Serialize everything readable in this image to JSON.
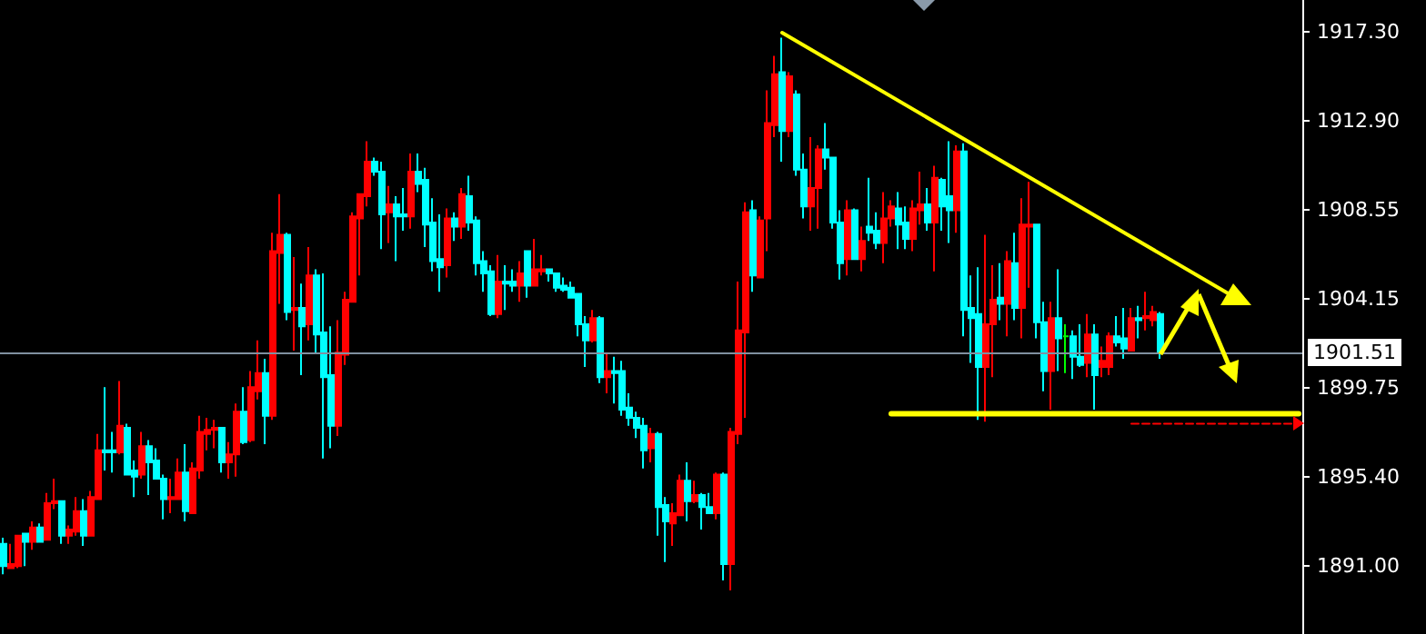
{
  "chart_data": {
    "type": "candlestick",
    "tick_labels": "y",
    "grid": false,
    "categories": [
      null,
      null,
      null,
      null,
      null,
      null,
      null,
      null,
      null,
      null,
      null,
      null,
      null,
      null,
      null,
      null,
      null,
      null,
      null,
      null,
      null,
      null,
      null,
      null,
      null,
      null,
      null,
      null,
      null,
      null,
      null,
      null,
      null,
      null,
      null,
      null,
      null,
      null,
      null,
      null,
      null,
      null,
      null,
      null,
      null,
      null,
      null,
      null,
      null,
      null,
      null,
      null,
      null,
      null,
      null,
      null,
      null,
      null,
      null,
      null,
      null,
      null,
      null,
      null,
      null,
      null,
      null,
      null,
      null,
      null,
      null,
      null,
      null,
      null,
      null,
      null,
      null,
      null,
      null,
      null,
      null,
      null,
      null,
      null,
      null,
      null,
      null,
      null,
      null,
      null,
      null,
      null,
      null,
      null,
      null,
      null,
      null,
      null,
      null,
      null,
      null,
      null,
      null,
      null,
      null,
      null,
      null,
      null,
      null,
      null,
      null,
      null,
      null,
      null,
      null,
      null,
      null,
      null,
      null,
      null,
      null,
      null,
      null,
      null,
      null,
      null,
      null,
      null,
      null,
      null,
      null,
      null,
      null,
      null,
      null,
      null,
      null,
      null,
      null,
      null,
      null,
      null,
      null,
      null,
      null,
      null,
      null,
      null,
      null,
      null,
      null,
      null,
      null,
      null,
      null,
      null,
      null,
      null,
      null,
      null,
      null,
      null,
      null,
      null,
      null,
      null,
      null,
      null,
      null,
      null,
      null,
      null,
      null,
      null,
      null,
      null,
      null,
      null,
      null
    ],
    "ohlc": [
      [
        1892.1,
        1892.4,
        1890.6,
        1891.0
      ],
      [
        1890.9,
        1892.1,
        1890.9,
        1891.1
      ],
      [
        1891.0,
        1892.5,
        1890.9,
        1892.5
      ],
      [
        1892.6,
        1892.6,
        1891.0,
        1892.2
      ],
      [
        1892.2,
        1893.2,
        1891.8,
        1892.9
      ],
      [
        1892.9,
        1893.1,
        1892.2,
        1892.2
      ],
      [
        1892.3,
        1894.6,
        1892.3,
        1894.1
      ],
      [
        1894.1,
        1895.3,
        1893.8,
        1894.2
      ],
      [
        1894.2,
        1894.2,
        1892.1,
        1892.5
      ],
      [
        1892.5,
        1893.0,
        1892.1,
        1892.8
      ],
      [
        1892.7,
        1894.4,
        1892.5,
        1893.7
      ],
      [
        1893.7,
        1894.3,
        1892.0,
        1892.5
      ],
      [
        1892.5,
        1894.7,
        1892.5,
        1894.4
      ],
      [
        1894.3,
        1897.5,
        1894.3,
        1896.7
      ],
      [
        1896.7,
        1899.8,
        1895.7,
        1896.6
      ],
      [
        1896.7,
        1897.6,
        1895.6,
        1896.6
      ],
      [
        1896.6,
        1900.1,
        1896.5,
        1897.9
      ],
      [
        1897.8,
        1898.0,
        1895.5,
        1895.5
      ],
      [
        1895.7,
        1896.2,
        1894.4,
        1895.4
      ],
      [
        1895.5,
        1897.6,
        1895.3,
        1896.9
      ],
      [
        1896.9,
        1897.2,
        1894.5,
        1896.1
      ],
      [
        1896.2,
        1896.8,
        1895.3,
        1895.3
      ],
      [
        1895.3,
        1895.5,
        1893.3,
        1894.3
      ],
      [
        1894.3,
        1895.3,
        1893.6,
        1894.4
      ],
      [
        1894.3,
        1896.3,
        1894.3,
        1895.6
      ],
      [
        1895.6,
        1897.0,
        1893.2,
        1893.7
      ],
      [
        1893.6,
        1896.1,
        1893.6,
        1895.8
      ],
      [
        1895.7,
        1898.4,
        1895.3,
        1897.6
      ],
      [
        1897.5,
        1898.3,
        1896.7,
        1897.7
      ],
      [
        1897.7,
        1898.2,
        1896.8,
        1897.8
      ],
      [
        1897.8,
        1897.8,
        1895.6,
        1896.1
      ],
      [
        1896.1,
        1897.1,
        1895.3,
        1896.5
      ],
      [
        1896.5,
        1899.0,
        1895.4,
        1898.6
      ],
      [
        1898.6,
        1899.8,
        1897.0,
        1897.1
      ],
      [
        1897.2,
        1900.6,
        1897.1,
        1899.8
      ],
      [
        1899.6,
        1902.1,
        1899.2,
        1900.5
      ],
      [
        1900.5,
        1901.2,
        1897.0,
        1898.4
      ],
      [
        1898.4,
        1907.4,
        1898.2,
        1906.5
      ],
      [
        1906.4,
        1909.3,
        1903.9,
        1907.3
      ],
      [
        1907.3,
        1907.4,
        1903.1,
        1903.5
      ],
      [
        1903.6,
        1906.2,
        1901.6,
        1903.7
      ],
      [
        1903.7,
        1904.9,
        1900.4,
        1902.8
      ],
      [
        1902.9,
        1906.7,
        1902.1,
        1905.3
      ],
      [
        1905.3,
        1905.6,
        1901.5,
        1902.4
      ],
      [
        1902.5,
        1905.4,
        1896.3,
        1900.3
      ],
      [
        1900.4,
        1902.8,
        1896.8,
        1897.9
      ],
      [
        1897.9,
        1903.1,
        1897.4,
        1901.5
      ],
      [
        1901.4,
        1904.5,
        1900.9,
        1904.1
      ],
      [
        1904.0,
        1908.4,
        1904.0,
        1908.2
      ],
      [
        1908.1,
        1909.3,
        1905.3,
        1909.3
      ],
      [
        1909.2,
        1911.9,
        1908.7,
        1910.9
      ],
      [
        1910.9,
        1911.1,
        1910.2,
        1910.4
      ],
      [
        1910.4,
        1910.9,
        1906.6,
        1908.3
      ],
      [
        1908.4,
        1909.7,
        1906.9,
        1908.8
      ],
      [
        1908.8,
        1909.2,
        1906.0,
        1908.2
      ],
      [
        1908.3,
        1909.6,
        1907.5,
        1908.2
      ],
      [
        1908.2,
        1911.3,
        1907.6,
        1910.4
      ],
      [
        1910.4,
        1911.3,
        1909.4,
        1909.8
      ],
      [
        1910.0,
        1910.6,
        1906.7,
        1907.8
      ],
      [
        1907.9,
        1909.1,
        1905.5,
        1906.0
      ],
      [
        1906.1,
        1908.3,
        1904.5,
        1905.7
      ],
      [
        1905.8,
        1908.6,
        1905.2,
        1908.1
      ],
      [
        1908.1,
        1908.4,
        1907.0,
        1907.7
      ],
      [
        1907.7,
        1909.6,
        1907.1,
        1909.3
      ],
      [
        1909.2,
        1910.2,
        1907.5,
        1907.9
      ],
      [
        1908.0,
        1908.2,
        1905.3,
        1905.9
      ],
      [
        1906.0,
        1906.5,
        1904.5,
        1905.4
      ],
      [
        1905.5,
        1905.8,
        1903.3,
        1903.4
      ],
      [
        1903.4,
        1906.3,
        1903.2,
        1905.0
      ],
      [
        1905.0,
        1905.8,
        1903.6,
        1904.9
      ],
      [
        1905.0,
        1905.6,
        1904.5,
        1904.8
      ],
      [
        1904.8,
        1906.0,
        1904.0,
        1905.4
      ],
      [
        1906.5,
        1906.5,
        1904.2,
        1904.8
      ],
      [
        1904.8,
        1907.1,
        1904.8,
        1905.6
      ],
      [
        1905.5,
        1906.3,
        1905.3,
        1905.6
      ],
      [
        1905.6,
        1905.6,
        1905.0,
        1905.4
      ],
      [
        1905.4,
        1905.4,
        1904.5,
        1904.7
      ],
      [
        1904.8,
        1905.2,
        1904.5,
        1904.6
      ],
      [
        1904.7,
        1905.0,
        1904.2,
        1904.2
      ],
      [
        1904.4,
        1904.4,
        1902.3,
        1902.9
      ],
      [
        1902.9,
        1903.3,
        1900.8,
        1902.1
      ],
      [
        1902.1,
        1903.6,
        1902.0,
        1903.2
      ],
      [
        1903.2,
        1903.3,
        1900.0,
        1900.3
      ],
      [
        1900.3,
        1901.5,
        1899.5,
        1900.6
      ],
      [
        1900.6,
        1901.3,
        1899.0,
        1900.5
      ],
      [
        1900.6,
        1901.1,
        1898.4,
        1898.7
      ],
      [
        1898.8,
        1899.5,
        1897.9,
        1898.3
      ],
      [
        1898.3,
        1898.6,
        1897.3,
        1897.8
      ],
      [
        1897.9,
        1898.3,
        1895.8,
        1896.7
      ],
      [
        1896.8,
        1897.8,
        1896.1,
        1897.5
      ],
      [
        1897.5,
        1897.6,
        1892.5,
        1893.9
      ],
      [
        1894.0,
        1894.4,
        1891.2,
        1893.2
      ],
      [
        1893.1,
        1894.1,
        1892.0,
        1893.6
      ],
      [
        1893.5,
        1895.5,
        1893.5,
        1895.2
      ],
      [
        1895.2,
        1896.1,
        1893.2,
        1894.2
      ],
      [
        1894.2,
        1895.2,
        1894.1,
        1894.5
      ],
      [
        1894.5,
        1894.6,
        1892.8,
        1893.9
      ],
      [
        1893.9,
        1894.6,
        1893.6,
        1893.6
      ],
      [
        1893.6,
        1895.6,
        1893.3,
        1895.5
      ],
      [
        1895.5,
        1895.6,
        1890.3,
        1891.1
      ],
      [
        1891.1,
        1897.8,
        1889.8,
        1897.6
      ],
      [
        1897.5,
        1905.0,
        1897.0,
        1902.6
      ],
      [
        1902.5,
        1908.9,
        1898.3,
        1908.4
      ],
      [
        1908.5,
        1909.0,
        1904.5,
        1905.3
      ],
      [
        1905.2,
        1908.2,
        1905.2,
        1908.0
      ],
      [
        1908.1,
        1914.4,
        1906.5,
        1912.8
      ],
      [
        1912.7,
        1916.1,
        1912.1,
        1915.2
      ],
      [
        1915.3,
        1917.0,
        1910.9,
        1912.4
      ],
      [
        1912.4,
        1915.3,
        1912.1,
        1915.1
      ],
      [
        1914.2,
        1914.4,
        1910.2,
        1910.5
      ],
      [
        1910.5,
        1911.3,
        1908.1,
        1908.7
      ],
      [
        1908.7,
        1912.1,
        1907.5,
        1909.6
      ],
      [
        1909.6,
        1911.7,
        1907.6,
        1911.5
      ],
      [
        1911.5,
        1912.8,
        1910.5,
        1911.1
      ],
      [
        1911.1,
        1911.1,
        1907.6,
        1907.9
      ],
      [
        1907.9,
        1908.5,
        1905.1,
        1905.9
      ],
      [
        1906.1,
        1909.0,
        1905.3,
        1908.5
      ],
      [
        1908.5,
        1908.6,
        1906.1,
        1906.1
      ],
      [
        1906.1,
        1907.7,
        1905.5,
        1907.0
      ],
      [
        1907.7,
        1910.1,
        1907.0,
        1907.4
      ],
      [
        1907.5,
        1908.4,
        1906.6,
        1906.9
      ],
      [
        1906.9,
        1909.4,
        1905.9,
        1908.1
      ],
      [
        1908.1,
        1909.0,
        1907.7,
        1908.7
      ],
      [
        1908.6,
        1909.4,
        1906.6,
        1907.8
      ],
      [
        1907.9,
        1908.7,
        1906.6,
        1907.1
      ],
      [
        1907.1,
        1909.0,
        1906.5,
        1908.6
      ],
      [
        1908.5,
        1910.4,
        1907.8,
        1908.8
      ],
      [
        1908.8,
        1909.6,
        1907.5,
        1907.9
      ],
      [
        1907.9,
        1910.7,
        1905.5,
        1910.1
      ],
      [
        1910.0,
        1910.1,
        1907.5,
        1908.7
      ],
      [
        1909.2,
        1911.9,
        1906.9,
        1908.5
      ],
      [
        1908.5,
        1911.7,
        1907.4,
        1911.4
      ],
      [
        1911.4,
        1911.8,
        1902.3,
        1903.6
      ],
      [
        1903.7,
        1905.3,
        1901.0,
        1903.2
      ],
      [
        1903.4,
        1905.7,
        1898.2,
        1900.8
      ],
      [
        1900.8,
        1907.3,
        1898.1,
        1902.9
      ],
      [
        1902.9,
        1905.8,
        1900.3,
        1904.1
      ],
      [
        1904.2,
        1905.9,
        1903.1,
        1903.9
      ],
      [
        1903.9,
        1906.5,
        1902.3,
        1906.0
      ],
      [
        1905.9,
        1907.4,
        1903.1,
        1903.7
      ],
      [
        1903.7,
        1909.1,
        1902.2,
        1907.8
      ],
      [
        1907.7,
        1909.9,
        1904.7,
        1907.8
      ],
      [
        1907.8,
        1907.8,
        1902.2,
        1903.0
      ],
      [
        1903.0,
        1904.0,
        1899.6,
        1900.6
      ],
      [
        1900.6,
        1904.0,
        1898.7,
        1903.2
      ],
      [
        1903.2,
        1905.6,
        1900.6,
        1902.2
      ],
      [
        1902.3,
        1902.9,
        1900.5,
        1902.3
      ],
      [
        1902.3,
        1902.6,
        1900.2,
        1901.3
      ],
      [
        1901.3,
        1902.9,
        1900.8,
        1900.9
      ],
      [
        1901.0,
        1903.4,
        1900.3,
        1902.4
      ],
      [
        1902.4,
        1902.9,
        1898.7,
        1900.4
      ],
      [
        1900.8,
        1901.8,
        1900.3,
        1901.1
      ],
      [
        1900.8,
        1902.5,
        1900.4,
        1902.3
      ],
      [
        1902.3,
        1903.3,
        1901.8,
        1902.0
      ],
      [
        1902.2,
        1903.7,
        1901.2,
        1901.7
      ],
      [
        1901.6,
        1903.7,
        1901.6,
        1903.2
      ],
      [
        1903.2,
        1903.8,
        1902.2,
        1903.1
      ],
      [
        1903.2,
        1904.5,
        1902.6,
        1903.3
      ],
      [
        1903.1,
        1903.8,
        1902.8,
        1903.5
      ],
      [
        1903.4,
        1903.5,
        1901.2,
        1901.5
      ],
      null,
      null,
      null,
      null,
      null,
      null,
      null,
      null,
      null,
      null,
      null,
      null,
      null,
      null,
      null,
      null,
      null,
      null,
      null
    ],
    "colors": [
      "#00ffff",
      "#ff0000",
      "#ff0000",
      "#00ffff",
      "#ff0000",
      "#00ffff",
      "#ff0000",
      "#ff0000",
      "#00ffff",
      "#ff0000",
      "#ff0000",
      "#00ffff",
      "#ff0000",
      "#ff0000",
      "#00ffff",
      "#00ffff",
      "#ff0000",
      "#00ffff",
      "#00ffff",
      "#ff0000",
      "#00ffff",
      "#00ffff",
      "#00ffff",
      "#ff0000",
      "#ff0000",
      "#00ffff",
      "#ff0000",
      "#ff0000",
      "#ff0000",
      "#ff0000",
      "#00ffff",
      "#ff0000",
      "#ff0000",
      "#00ffff",
      "#ff0000",
      "#ff0000",
      "#00ffff",
      "#ff0000",
      "#ff0000",
      "#00ffff",
      "#ff0000",
      "#00ffff",
      "#ff0000",
      "#00ffff",
      "#00ffff",
      "#00ffff",
      "#ff0000",
      "#ff0000",
      "#ff0000",
      "#ff0000",
      "#ff0000",
      "#00ffff",
      "#00ffff",
      "#ff0000",
      "#00ffff",
      "#00ffff",
      "#ff0000",
      "#00ffff",
      "#00ffff",
      "#00ffff",
      "#00ffff",
      "#ff0000",
      "#00ffff",
      "#ff0000",
      "#00ffff",
      "#00ffff",
      "#00ffff",
      "#00ffff",
      "#ff0000",
      "#00ffff",
      "#00ffff",
      "#ff0000",
      "#00ffff",
      "#ff0000",
      "#ff0000",
      "#00ffff",
      "#00ffff",
      "#00ffff",
      "#00ffff",
      "#00ffff",
      "#00ffff",
      "#ff0000",
      "#00ffff",
      "#ff0000",
      "#00ffff",
      "#00ffff",
      "#00ffff",
      "#00ffff",
      "#00ffff",
      "#ff0000",
      "#00ffff",
      "#00ffff",
      "#ff0000",
      "#ff0000",
      "#00ffff",
      "#ff0000",
      "#00ffff",
      "#00ffff",
      "#ff0000",
      "#00ffff",
      "#ff0000",
      "#ff0000",
      "#ff0000",
      "#00ffff",
      "#ff0000",
      "#ff0000",
      "#ff0000",
      "#00ffff",
      "#ff0000",
      "#00ffff",
      "#00ffff",
      "#ff0000",
      "#ff0000",
      "#00ffff",
      "#00ffff",
      "#00ffff",
      "#ff0000",
      "#00ffff",
      "#ff0000",
      "#00ffff",
      "#00ffff",
      "#ff0000",
      "#ff0000",
      "#00ffff",
      "#00ffff",
      "#ff0000",
      "#ff0000",
      "#00ffff",
      "#ff0000",
      "#00ffff",
      "#00ffff",
      "#ff0000",
      "#00ffff",
      "#00ffff",
      "#00ffff",
      "#ff0000",
      "#ff0000",
      "#00ffff",
      "#ff0000",
      "#00ffff",
      "#ff0000",
      "#ff0000",
      "#00ffff",
      "#00ffff",
      "#ff0000",
      "#00ffff",
      "#00ff00",
      "#00ffff",
      "#00ffff",
      "#ff0000",
      "#00ffff",
      "#ff0000",
      "#ff0000",
      "#00ffff",
      "#00ffff",
      "#ff0000",
      "#00ffff",
      "#ff0000",
      "#ff0000",
      "#00ffff",
      null,
      null,
      null,
      null,
      null,
      null,
      null,
      null,
      null,
      null,
      null,
      null,
      null,
      null,
      null,
      null,
      null,
      null,
      null
    ],
    "series": [
      {
        "type": "line",
        "color": "#ffff00",
        "values": [
          null,
          null,
          null,
          null,
          null,
          null,
          null,
          null,
          null,
          null,
          null,
          null,
          null,
          null,
          null,
          null,
          null,
          null,
          null,
          null,
          null,
          null,
          null,
          null,
          null,
          null,
          null,
          null,
          null,
          null,
          null,
          null,
          null,
          null,
          null,
          null,
          null,
          null,
          null,
          null,
          null,
          null,
          null,
          null,
          null,
          null,
          null,
          null,
          null,
          null,
          null,
          null,
          null,
          null,
          null,
          null,
          null,
          null,
          null,
          null,
          null,
          null,
          null,
          null,
          null,
          null,
          null,
          null,
          null,
          null,
          null,
          null,
          null,
          null,
          null,
          null,
          null,
          null,
          null,
          null,
          null,
          null,
          null,
          null,
          null,
          null,
          null,
          null,
          null,
          null,
          null,
          null,
          null,
          null,
          null,
          null,
          null,
          null,
          null,
          null,
          null,
          null,
          null,
          null,
          null,
          null,
          null,
          null,
          null,
          null,
          null,
          null,
          null,
          null,
          null,
          null,
          null,
          null,
          null,
          null,
          null,
          null,
          1898.5,
          null,
          null,
          null,
          null,
          null,
          null,
          null,
          null,
          null,
          null,
          null,
          null,
          null,
          null,
          null,
          null,
          null,
          null,
          null,
          null,
          null,
          null,
          null,
          null,
          null,
          null,
          null,
          null,
          null,
          null,
          null,
          null,
          null,
          null,
          null,
          null,
          null,
          null,
          null,
          null,
          null,
          null,
          null,
          null,
          null,
          null,
          null,
          null,
          null,
          null,
          null,
          null,
          null,
          null,
          null,
          1898.5
        ]
      },
      {
        "type": "line",
        "color": "#ff0000",
        "line_style": "dashed",
        "values": [
          null,
          null,
          null,
          null,
          null,
          null,
          null,
          null,
          null,
          null,
          null,
          null,
          null,
          null,
          null,
          null,
          null,
          null,
          null,
          null,
          null,
          null,
          null,
          null,
          null,
          null,
          null,
          null,
          null,
          null,
          null,
          null,
          null,
          null,
          null,
          null,
          null,
          null,
          null,
          null,
          null,
          null,
          null,
          null,
          null,
          null,
          null,
          null,
          null,
          null,
          null,
          null,
          null,
          null,
          null,
          null,
          null,
          null,
          null,
          null,
          null,
          null,
          null,
          null,
          null,
          null,
          null,
          null,
          null,
          null,
          null,
          null,
          null,
          null,
          null,
          null,
          null,
          null,
          null,
          null,
          null,
          null,
          null,
          null,
          null,
          null,
          null,
          null,
          null,
          null,
          null,
          null,
          null,
          null,
          null,
          null,
          null,
          null,
          null,
          null,
          null,
          null,
          null,
          null,
          null,
          null,
          null,
          null,
          null,
          null,
          null,
          null,
          null,
          null,
          null,
          null,
          null,
          null,
          null,
          null,
          null,
          null,
          null,
          null,
          null,
          null,
          null,
          null,
          null,
          null,
          null,
          null,
          null,
          null,
          null,
          null,
          null,
          null,
          null,
          null,
          null,
          null,
          null,
          null,
          null,
          null,
          null,
          null,
          null,
          null,
          null,
          null,
          null,
          null,
          null,
          1898.0,
          null,
          null,
          null,
          null,
          null,
          null,
          null,
          null,
          null,
          null,
          null,
          null,
          null,
          null,
          null,
          null,
          null,
          null,
          null,
          null,
          null,
          null,
          1898.0
        ]
      }
    ],
    "ylim": [
      1887.66,
      1918.85
    ],
    "yticks": [
      {
        "value": 1917.3,
        "label": "1917.30"
      },
      {
        "value": 1912.9,
        "label": "1912.90"
      },
      1908.55,
      1904.15,
      1899.75,
      {
        "value": 1895.4,
        "label": "1895.40"
      },
      {
        "value": 1891,
        "label": "1891.00"
      }
    ],
    "ref_lines": [
      {
        "axis": "y",
        "value": 1901.51,
        "label": "1901.51",
        "color": "#8090a0"
      }
    ]
  }
}
